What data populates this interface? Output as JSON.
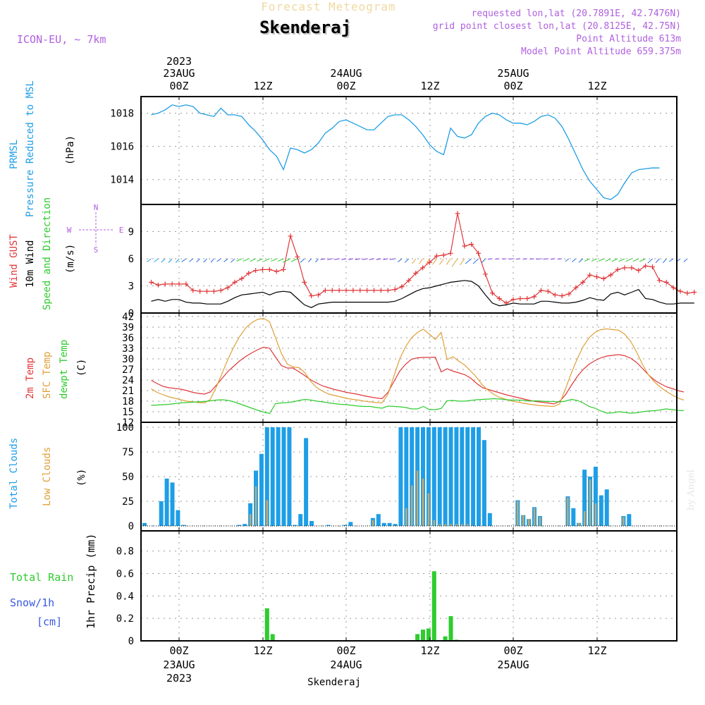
{
  "header": {
    "banner": "Forecast Meteogram",
    "location": "Skenderaj",
    "model": "ICON-EU, ~ 7km",
    "requested_point": "requested lon,lat (20.7891E, 42.7476N)",
    "grid_point": "grid point closest lon,lat (20.8125E, 42.75N)",
    "point_altitude": "Point Altitude 613m",
    "model_altitude": "Model Point Altitude 659.375m",
    "footer_location": "Skenderaj",
    "watermark": "by Angel"
  },
  "time_axis": {
    "ticks": [
      "00Z",
      "12Z",
      "00Z",
      "12Z",
      "00Z",
      "12Z"
    ],
    "dates": [
      "23AUG",
      "24AUG",
      "25AUG"
    ],
    "year": "2023"
  },
  "panels": {
    "pressure": {
      "label1": "PRMSL",
      "label2": "Pressure Reduced to MSL",
      "unit": "(hPa)"
    },
    "wind": {
      "label_gust": "Wind GUST",
      "label_wind": "10m Wind",
      "label_dir": "Speed and Direction",
      "unit": "(m/s)",
      "compass_n": "N",
      "compass_s": "S",
      "compass_w": "W",
      "compass_e": "E"
    },
    "temp": {
      "label_t2m": "2m Temp",
      "label_sfc": "SFC Temp",
      "label_dew": "dewpt Temp",
      "unit": "(C)"
    },
    "clouds": {
      "label_total": "Total Clouds",
      "label_low": "Low Clouds",
      "unit": "(%)"
    },
    "precip": {
      "label_rain": "Total  Rain",
      "label_snow": "Snow/1h",
      "label_cm": "[cm]",
      "label_precip": "1hr Precip (mm)"
    }
  },
  "colors": {
    "pressure": "#1e9ee6",
    "gust": "#e0383a",
    "wind": "#000000",
    "t2m": "#e0383a",
    "sfc": "#e0a03a",
    "dew": "#2ecc2e",
    "total_clouds": "#1e9ee6",
    "low_clouds": "#c9a96a",
    "rain": "#2ecc2e",
    "label_cyan": "#1e9ee6",
    "label_purple": "#b060e0"
  },
  "chart_data": [
    {
      "type": "line",
      "title": "PRMSL Pressure Reduced to MSL",
      "ylabel": "(hPa)",
      "ylim": [
        1012.5,
        1019.0
      ],
      "yticks": [
        "1014",
        "1016",
        "1018"
      ],
      "x_hours_start": -4,
      "series": [
        {
          "name": "PRMSL",
          "values": [
            1017.9,
            1018.0,
            1018.2,
            1018.5,
            1018.4,
            1018.5,
            1018.4,
            1018.0,
            1017.9,
            1017.8,
            1018.3,
            1017.9,
            1017.9,
            1017.8,
            1017.3,
            1016.9,
            1016.4,
            1015.8,
            1015.4,
            1014.6,
            1015.9,
            1015.8,
            1015.6,
            1015.8,
            1016.2,
            1016.8,
            1017.1,
            1017.5,
            1017.6,
            1017.4,
            1017.2,
            1017.0,
            1017.0,
            1017.4,
            1017.8,
            1017.9,
            1017.9,
            1017.6,
            1017.2,
            1016.7,
            1016.1,
            1015.7,
            1015.5,
            1017.1,
            1016.6,
            1016.5,
            1016.7,
            1017.4,
            1017.8,
            1018.0,
            1017.9,
            1017.6,
            1017.4,
            1017.4,
            1017.3,
            1017.5,
            1017.8,
            1017.9,
            1017.7,
            1017.2,
            1016.4,
            1015.5,
            1014.6,
            1013.9,
            1013.4,
            1012.9,
            1012.8,
            1013.1,
            1013.8,
            1014.4,
            1014.6,
            1014.65,
            1014.7,
            1014.7
          ]
        }
      ]
    },
    {
      "type": "line",
      "title": "Wind GUST 10m Wind Speed and Direction",
      "ylabel": "(m/s)",
      "ylim": [
        0,
        12
      ],
      "yticks": [
        "0",
        "3",
        "6",
        "9"
      ],
      "x_hours_start": -4,
      "series": [
        {
          "name": "Wind GUST",
          "values": [
            3.4,
            3.1,
            3.2,
            3.2,
            3.2,
            3.2,
            2.5,
            2.4,
            2.4,
            2.4,
            2.5,
            2.8,
            3.4,
            3.8,
            4.4,
            4.7,
            4.8,
            4.8,
            4.6,
            4.8,
            8.5,
            6.2,
            3.4,
            1.9,
            2.0,
            2.5,
            2.5,
            2.5,
            2.5,
            2.5,
            2.5,
            2.5,
            2.5,
            2.5,
            2.5,
            2.6,
            2.9,
            3.6,
            4.4,
            5.0,
            5.6,
            6.3,
            6.4,
            6.6,
            11.0,
            7.4,
            7.6,
            6.6,
            4.3,
            2.2,
            1.6,
            1.1,
            1.5,
            1.6,
            1.6,
            1.8,
            2.5,
            2.4,
            2.0,
            1.9,
            2.1,
            2.8,
            3.4,
            4.2,
            4.0,
            3.8,
            4.2,
            4.8,
            5.0,
            5.0,
            4.7,
            5.2,
            5.1,
            3.6,
            3.4,
            2.8,
            2.4,
            2.2,
            2.3
          ]
        },
        {
          "name": "10m Wind",
          "values": [
            1.3,
            1.5,
            1.3,
            1.5,
            1.5,
            1.2,
            1.1,
            1.1,
            1.0,
            1.0,
            1.0,
            1.3,
            1.7,
            2.0,
            2.1,
            2.2,
            2.3,
            2.0,
            2.3,
            2.4,
            2.3,
            1.6,
            0.9,
            0.6,
            1.0,
            1.1,
            1.2,
            1.2,
            1.2,
            1.2,
            1.2,
            1.2,
            1.2,
            1.2,
            1.2,
            1.3,
            1.6,
            2.0,
            2.4,
            2.7,
            2.8,
            3.0,
            3.2,
            3.4,
            3.5,
            3.6,
            3.5,
            3.0,
            2.0,
            1.1,
            0.8,
            0.9,
            1.1,
            1.0,
            1.0,
            1.0,
            1.3,
            1.3,
            1.2,
            1.1,
            1.1,
            1.2,
            1.4,
            1.7,
            1.5,
            1.4,
            2.1,
            2.3,
            2.0,
            2.3,
            2.6,
            1.6,
            1.5,
            1.2,
            1.0,
            1.0,
            1.1,
            1.1,
            1.1
          ]
        }
      ]
    },
    {
      "type": "line",
      "title": "2m Temp SFC Temp dewpt Temp",
      "ylabel": "(C)",
      "ylim": [
        12,
        43
      ],
      "yticks": [
        "12",
        "15",
        "18",
        "21",
        "24",
        "27",
        "30",
        "33",
        "36",
        "39",
        "42"
      ],
      "x_hours_start": -4,
      "series": [
        {
          "name": "2m Temp",
          "values": [
            23.9,
            23.0,
            22.2,
            21.8,
            21.6,
            21.4,
            21.0,
            20.5,
            20.2,
            20.0,
            20.6,
            22.5,
            24.5,
            26.5,
            28.0,
            29.5,
            30.7,
            31.7,
            32.6,
            33.3,
            33.0,
            30.5,
            28.1,
            27.4,
            27.4,
            26.3,
            25.2,
            24.0,
            23.1,
            22.3,
            21.8,
            21.3,
            20.9,
            20.5,
            20.2,
            19.9,
            19.5,
            19.2,
            18.9,
            18.7,
            20.5,
            23.5,
            26.5,
            28.5,
            29.9,
            30.3,
            30.4,
            30.4,
            30.5,
            26.3,
            27.2,
            26.5,
            26.0,
            25.5,
            24.5,
            23.0,
            21.8,
            21.3,
            20.8,
            20.3,
            19.8,
            19.4,
            19.0,
            18.6,
            18.2,
            17.9,
            17.7,
            17.5,
            17.2,
            17.9,
            19.8,
            22.5,
            25.0,
            27.0,
            28.5,
            29.5,
            30.3,
            30.8,
            31.0,
            31.2,
            30.9,
            30.2,
            29.0,
            27.3,
            25.5,
            24.0,
            23.0,
            22.1,
            21.6,
            21.0,
            20.6
          ]
        },
        {
          "name": "SFC Temp",
          "values": [
            21.5,
            20.5,
            19.8,
            19.2,
            18.8,
            18.4,
            18.0,
            17.8,
            17.6,
            17.5,
            18.5,
            22.0,
            26.0,
            30.0,
            33.5,
            36.5,
            38.8,
            40.3,
            41.2,
            41.5,
            40.5,
            36.0,
            31.5,
            28.5,
            27.7,
            27.5,
            26.0,
            23.5,
            21.8,
            20.8,
            20.0,
            19.6,
            19.2,
            18.8,
            18.5,
            18.3,
            18.0,
            17.8,
            17.6,
            17.5,
            20.0,
            25.0,
            30.0,
            33.5,
            36.0,
            37.5,
            38.4,
            37.0,
            35.5,
            37.5,
            29.8,
            30.6,
            29.3,
            28.2,
            26.5,
            24.7,
            22.5,
            21.0,
            19.8,
            19.0,
            18.5,
            18.0,
            17.7,
            17.4,
            17.1,
            16.9,
            16.7,
            16.6,
            16.5,
            17.2,
            21.5,
            26.0,
            30.0,
            33.5,
            36.0,
            37.5,
            38.3,
            38.5,
            38.3,
            38.1,
            37.0,
            35.0,
            32.0,
            28.5,
            25.5,
            23.5,
            22.0,
            20.8,
            19.8,
            18.9,
            18.3
          ]
        },
        {
          "name": "dewpt Temp",
          "values": [
            16.8,
            16.9,
            17.0,
            17.1,
            17.3,
            17.5,
            17.6,
            17.7,
            17.8,
            17.9,
            18.1,
            18.3,
            18.4,
            18.2,
            17.8,
            17.2,
            16.6,
            16.0,
            15.4,
            14.9,
            14.5,
            17.3,
            17.5,
            17.6,
            17.8,
            18.2,
            18.5,
            18.3,
            18.0,
            17.8,
            17.5,
            17.3,
            17.1,
            17.0,
            16.8,
            16.6,
            16.5,
            16.5,
            16.2,
            16.0,
            16.6,
            16.5,
            16.4,
            16.2,
            15.8,
            15.8,
            16.5,
            15.6,
            15.6,
            15.9,
            18.1,
            18.2,
            18.0,
            18.0,
            18.2,
            18.4,
            18.5,
            18.6,
            18.7,
            18.6,
            18.4,
            18.3,
            18.3,
            18.2,
            18.0,
            18.1,
            18.0,
            17.9,
            17.9,
            17.8,
            18.0,
            18.5,
            18.2,
            17.5,
            16.5,
            16.0,
            15.2,
            14.6,
            14.7,
            15.0,
            14.8,
            14.6,
            14.7,
            15.0,
            15.2,
            15.3,
            15.5,
            15.8,
            15.6,
            15.4,
            15.3
          ]
        }
      ]
    },
    {
      "type": "bar",
      "title": "Total Clouds Low Clouds",
      "ylabel": "(%)",
      "ylim": [
        -5,
        105
      ],
      "yticks": [
        "0",
        "25",
        "50",
        "75",
        "100"
      ],
      "x_hours_start": -4,
      "series": [
        {
          "name": "Total Clouds",
          "values": [
            3,
            0,
            0,
            25,
            48,
            44,
            16,
            1,
            0,
            0,
            0,
            0,
            0,
            0,
            0,
            0,
            0,
            1,
            2,
            23,
            56,
            73,
            100,
            100,
            100,
            100,
            100,
            1,
            12,
            89,
            5,
            0,
            0,
            1,
            0,
            0,
            1,
            4,
            0,
            0,
            0,
            8,
            12,
            3,
            3,
            2,
            100,
            100,
            100,
            100,
            100,
            100,
            100,
            100,
            100,
            100,
            100,
            100,
            100,
            100,
            100,
            87,
            13,
            0,
            0,
            0,
            0,
            26,
            11,
            7,
            19,
            10,
            0,
            0,
            0,
            0,
            30,
            18,
            3,
            57,
            50,
            60,
            31,
            37,
            0,
            0,
            10,
            12,
            0,
            0,
            0,
            0
          ]
        },
        {
          "name": "Low Clouds",
          "values": [
            0,
            0,
            0,
            0,
            0,
            0,
            0,
            0,
            0,
            0,
            0,
            0,
            0,
            0,
            0,
            0,
            0,
            0,
            0,
            12,
            40,
            0,
            26,
            0,
            0,
            0,
            0,
            0,
            0,
            0,
            0,
            0,
            0,
            0,
            0,
            0,
            0,
            0,
            0,
            0,
            0,
            6,
            0,
            0,
            0,
            0,
            0,
            18,
            41,
            56,
            48,
            33,
            6,
            2,
            2,
            2,
            2,
            2,
            2,
            0,
            0,
            0,
            0,
            0,
            0,
            0,
            0,
            25,
            11,
            7,
            18,
            9,
            0,
            0,
            0,
            0,
            29,
            0,
            3,
            15,
            47,
            23,
            0,
            0,
            0,
            0,
            9,
            0,
            0,
            0,
            0,
            0
          ]
        }
      ]
    },
    {
      "type": "bar",
      "title": "Total Rain Snow/1h",
      "ylabel": "1hr Precip (mm)",
      "ylim": [
        0,
        0.98
      ],
      "yticks": [
        "0",
        "0.2",
        "0.4",
        "0.6",
        "0.8"
      ],
      "x_hours_start": -4,
      "series": [
        {
          "name": "Total Rain",
          "values": [
            0,
            0,
            0,
            0,
            0,
            0,
            0,
            0,
            0,
            0,
            0,
            0,
            0,
            0,
            0,
            0,
            0,
            0,
            0,
            0,
            0,
            0,
            0.29,
            0.06,
            0,
            0,
            0,
            0,
            0,
            0,
            0,
            0,
            0,
            0,
            0,
            0,
            0,
            0,
            0,
            0,
            0,
            0,
            0,
            0,
            0,
            0,
            0,
            0,
            0,
            0.06,
            0.1,
            0.11,
            0.62,
            0,
            0.04,
            0.22,
            0.01,
            0,
            0,
            0,
            0,
            0,
            0,
            0,
            0,
            0,
            0,
            0,
            0,
            0,
            0,
            0,
            0,
            0,
            0,
            0,
            0,
            0,
            0,
            0,
            0,
            0,
            0,
            0,
            0,
            0,
            0,
            0,
            0,
            0,
            0,
            0
          ]
        }
      ]
    }
  ]
}
